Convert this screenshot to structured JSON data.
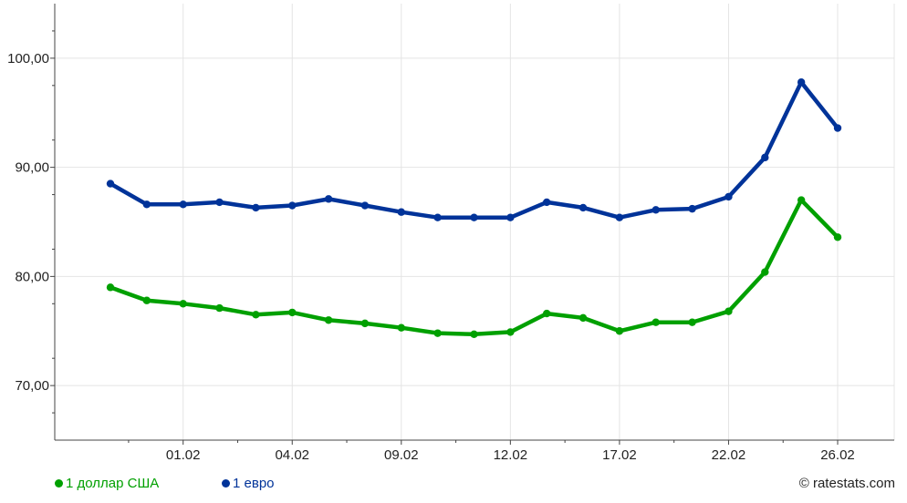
{
  "chart_data": {
    "type": "line",
    "title": "",
    "xlabel": "",
    "ylabel": "",
    "ylim": [
      65,
      105
    ],
    "yticks": [
      70,
      80,
      90,
      100
    ],
    "ytick_labels": [
      "70,00",
      "80,00",
      "90,00",
      "100,00"
    ],
    "x_tick_labels": [
      "01.02",
      "04.02",
      "09.02",
      "12.02",
      "17.02",
      "22.02",
      "26.02"
    ],
    "x_tick_points": [
      2,
      5,
      8,
      11,
      14,
      17,
      20
    ],
    "grid": true,
    "legend_position": "bottom-left",
    "series": [
      {
        "name": "1 доллар США",
        "color": "#00a000",
        "values": [
          79.0,
          77.8,
          77.5,
          77.1,
          76.5,
          76.7,
          76.0,
          75.7,
          75.3,
          74.8,
          74.7,
          74.9,
          76.6,
          76.2,
          75.0,
          75.8,
          75.8,
          76.8,
          80.4,
          87.0,
          83.6
        ]
      },
      {
        "name": "1 евро",
        "color": "#003399",
        "values": [
          88.5,
          86.6,
          86.6,
          86.8,
          86.3,
          86.5,
          87.1,
          86.5,
          85.9,
          85.4,
          85.4,
          85.4,
          86.8,
          86.3,
          85.4,
          86.1,
          86.2,
          87.3,
          90.9,
          97.8,
          93.6
        ]
      }
    ]
  },
  "legend": {
    "usd_label": "1 доллар США",
    "eur_label": "1 евро"
  },
  "credit": "© ratestats.com"
}
